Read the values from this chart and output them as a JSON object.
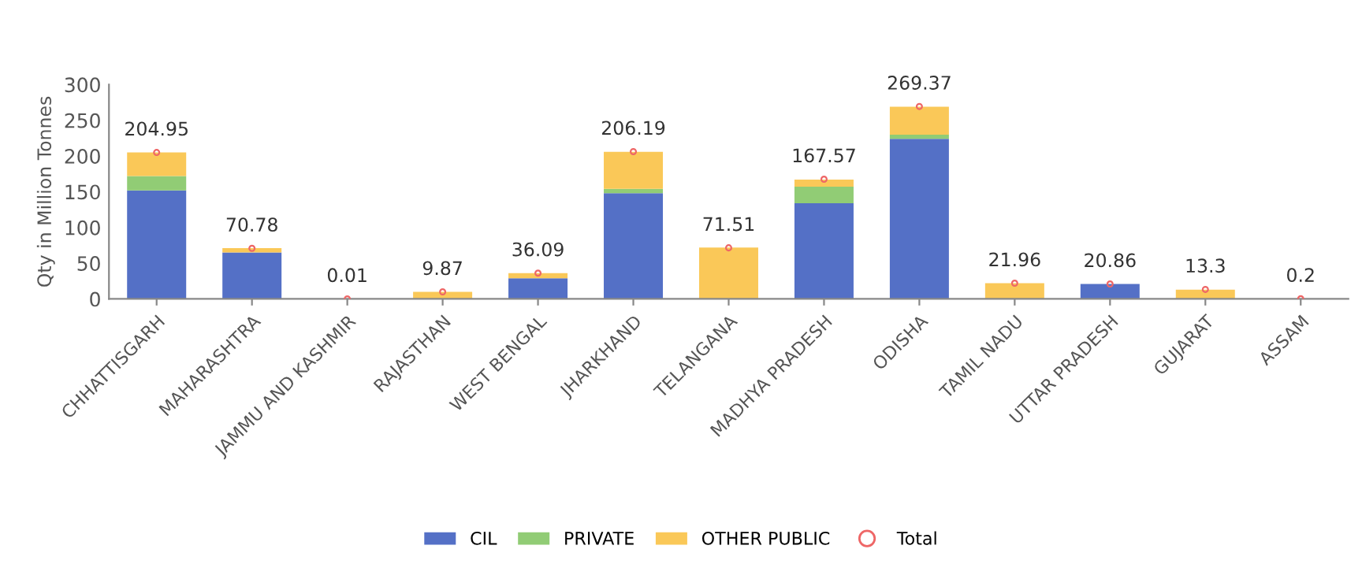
{
  "chart_data": {
    "type": "bar",
    "stacked": true,
    "ylabel": "Qty in Million Tonnes",
    "categories": [
      "CHHATTISGARH",
      "MAHARASHTRA",
      "JAMMU AND KASHMIR",
      "RAJASTHAN",
      "WEST BENGAL",
      "JHARKHAND",
      "TELANGANA",
      "MADHYA PRADESH",
      "ODISHA",
      "TAMIL NADU",
      "UTTAR PRADESH",
      "GUJARAT",
      "ASSAM"
    ],
    "series": [
      {
        "name": "CIL",
        "color": "#5470c6",
        "values": [
          152,
          65,
          null,
          null,
          29,
          148,
          null,
          134,
          224,
          null,
          21,
          null,
          null
        ]
      },
      {
        "name": "PRIVATE",
        "color": "#91cc75",
        "values": [
          20,
          null,
          null,
          null,
          null,
          6,
          null,
          23,
          6,
          null,
          null,
          null,
          null
        ]
      },
      {
        "name": "OTHER PUBLIC",
        "color": "#fac858",
        "values": [
          33,
          6,
          null,
          10,
          7,
          52,
          72,
          10,
          39,
          22,
          null,
          13,
          null
        ]
      },
      {
        "name": "Total",
        "type": "scatter",
        "color": "#ee6666",
        "values": [
          204.95,
          70.78,
          0.01,
          9.87,
          36.09,
          206.19,
          71.51,
          167.57,
          269.37,
          21.96,
          20.86,
          13.3,
          0.2
        ],
        "value_labels": [
          "204.95",
          "70.78",
          "0.01",
          "9.87",
          "36.09",
          "206.19",
          "71.51",
          "167.57",
          "269.37",
          "21.96",
          "20.86",
          "13.3",
          "0.2"
        ]
      }
    ],
    "ylim": [
      0,
      300
    ],
    "yticks": [
      0,
      50,
      100,
      150,
      200,
      250,
      300
    ],
    "grid": false,
    "legend": "bottom",
    "marker": "circle"
  }
}
